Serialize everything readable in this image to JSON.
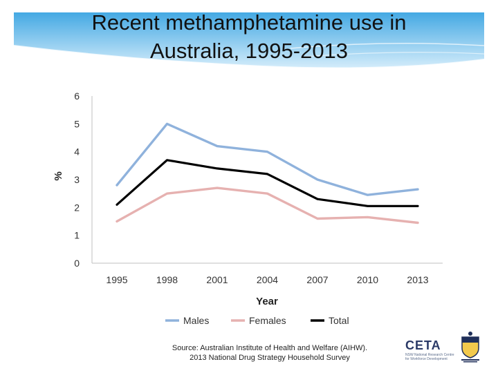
{
  "title": {
    "line1": "Recent methamphetamine use in",
    "line2": "Australia, 1995-2013"
  },
  "source": {
    "line1": "Source: Australian Institute of Health and Welfare (AIHW).",
    "line2": "2013 National Drug Strategy Household Survey"
  },
  "logos": {
    "ceta_label": "CETA",
    "ceta_sub1": "NSW National Research Centre",
    "ceta_sub2": "for Workforce Development"
  },
  "colors": {
    "banner_top": "#2f9fe0",
    "banner_bottom": "#bfe3f8",
    "males": "#8fb2dc",
    "females": "#e6b1b0",
    "total": "#000000",
    "axis": "#bfbfbf"
  },
  "chart_data": {
    "type": "line",
    "categories": [
      "1995",
      "1998",
      "2001",
      "2004",
      "2007",
      "2010",
      "2013"
    ],
    "series": [
      {
        "name": "Males",
        "values": [
          2.8,
          5.0,
          4.2,
          4.0,
          3.0,
          2.45,
          2.65
        ],
        "color": "#8fb2dc"
      },
      {
        "name": "Females",
        "values": [
          1.5,
          2.5,
          2.7,
          2.5,
          1.6,
          1.65,
          1.45
        ],
        "color": "#e6b1b0"
      },
      {
        "name": "Total",
        "values": [
          2.1,
          3.7,
          3.4,
          3.2,
          2.3,
          2.05,
          2.05
        ],
        "color": "#000000"
      }
    ],
    "title": "",
    "xlabel": "Year",
    "ylabel": "%",
    "ylim": [
      0,
      6
    ],
    "yticks": [
      "0",
      "1",
      "2",
      "3",
      "4",
      "5",
      "6"
    ],
    "grid": false,
    "legend": "bottom"
  }
}
